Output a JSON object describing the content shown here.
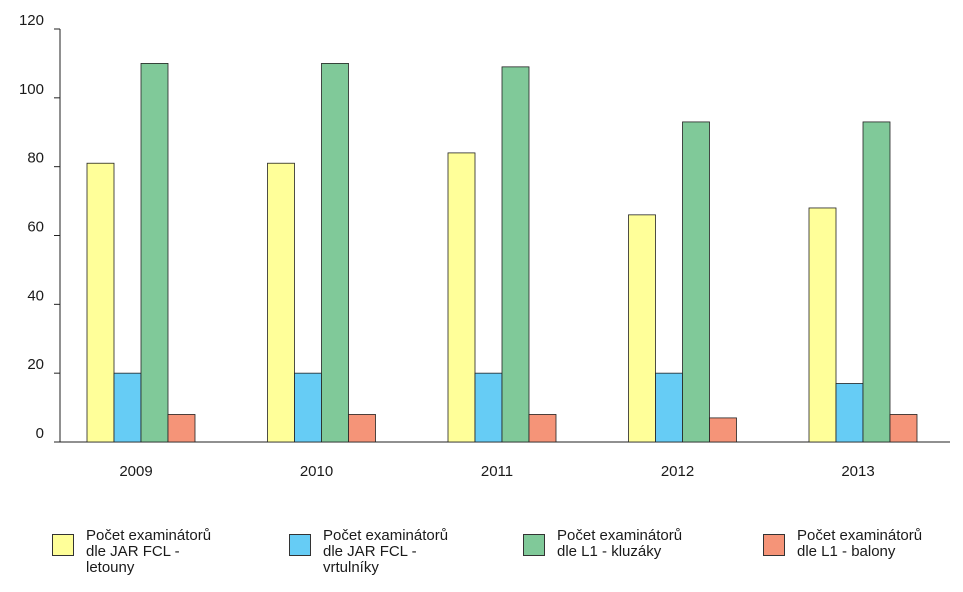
{
  "chart_data": {
    "type": "bar",
    "categories": [
      "2009",
      "2010",
      "2011",
      "2012",
      "2013"
    ],
    "ylim": [
      0,
      120
    ],
    "yticks": [
      "0",
      "20",
      "40",
      "60",
      "80",
      "100",
      "120"
    ],
    "grid": false,
    "legend_position": "bottom",
    "series": [
      {
        "name": "Počet examinátorů dle JAR FCL - letouny",
        "name_lines": [
          "Počet examinátorů",
          "dle JAR FCL -",
          "letouny"
        ],
        "color": "#ffff99",
        "values": [
          81,
          81,
          84,
          66,
          68
        ]
      },
      {
        "name": "Počet examinátorů dle JAR FCL - vrtulníky",
        "name_lines": [
          "Počet examinátorů",
          "dle JAR FCL -",
          "vrtulníky"
        ],
        "color": "#66ccf5",
        "values": [
          20,
          20,
          20,
          20,
          17
        ]
      },
      {
        "name": "Počet examinátorů dle L1 - kluzáky",
        "name_lines": [
          "Počet examinátorů",
          "dle L1 - kluzáky"
        ],
        "color": "#80c999",
        "values": [
          110,
          110,
          109,
          93,
          93
        ]
      },
      {
        "name": "Počet examinátorů dle L1 - balony",
        "name_lines": [
          "Počet examinátorů",
          "dle L1 - balony"
        ],
        "color": "#f59478",
        "values": [
          8,
          8,
          8,
          7,
          8
        ]
      }
    ]
  }
}
